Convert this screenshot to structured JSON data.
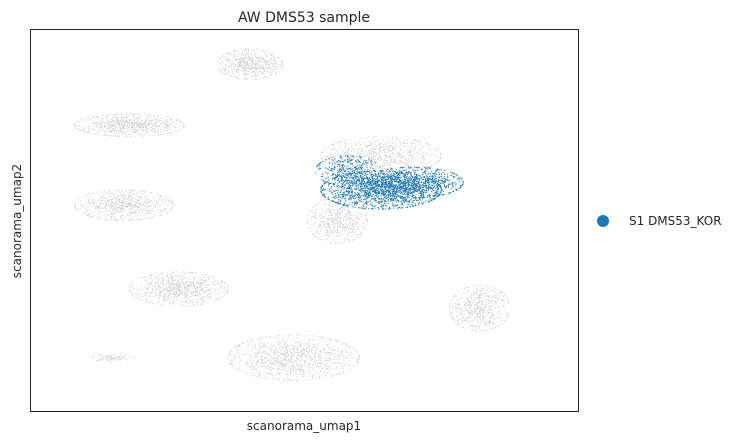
{
  "chart_data": {
    "type": "scatter",
    "title": "AW DMS53 sample",
    "xlabel": "scanorama_umap1",
    "ylabel": "scanorama_umap2",
    "grid": false,
    "ticks": false,
    "legend_position": "right-center",
    "xlim": [
      0,
      100
    ],
    "ylim": [
      0,
      100
    ],
    "background_color": "#d3d3d3",
    "series": [
      {
        "name": "S1 DMS53_KOR",
        "color": "#1f77b4",
        "clusters": [
          {
            "cx": 64,
            "cy": 58,
            "rx": 11,
            "ry": 5,
            "n": 1400
          },
          {
            "cx": 70,
            "cy": 60,
            "rx": 9,
            "ry": 4,
            "n": 700
          },
          {
            "cx": 58,
            "cy": 63,
            "rx": 6,
            "ry": 4,
            "n": 350
          }
        ]
      }
    ],
    "background_clusters": [
      {
        "cx": 40,
        "cy": 91,
        "rx": 6,
        "ry": 4,
        "n": 650
      },
      {
        "cx": 18,
        "cy": 75,
        "rx": 10,
        "ry": 3,
        "n": 850
      },
      {
        "cx": 17,
        "cy": 54,
        "rx": 9,
        "ry": 4,
        "n": 850
      },
      {
        "cx": 64,
        "cy": 67,
        "rx": 11,
        "ry": 5,
        "n": 950
      },
      {
        "cx": 56,
        "cy": 50,
        "rx": 5.5,
        "ry": 6,
        "n": 650
      },
      {
        "cx": 27,
        "cy": 32,
        "rx": 9,
        "ry": 4.5,
        "n": 950
      },
      {
        "cx": 82,
        "cy": 27,
        "rx": 5.5,
        "ry": 6,
        "n": 650
      },
      {
        "cx": 48,
        "cy": 14,
        "rx": 12,
        "ry": 6,
        "n": 1300
      },
      {
        "cx": 15,
        "cy": 14,
        "rx": 4,
        "ry": 1.2,
        "n": 110
      }
    ]
  }
}
